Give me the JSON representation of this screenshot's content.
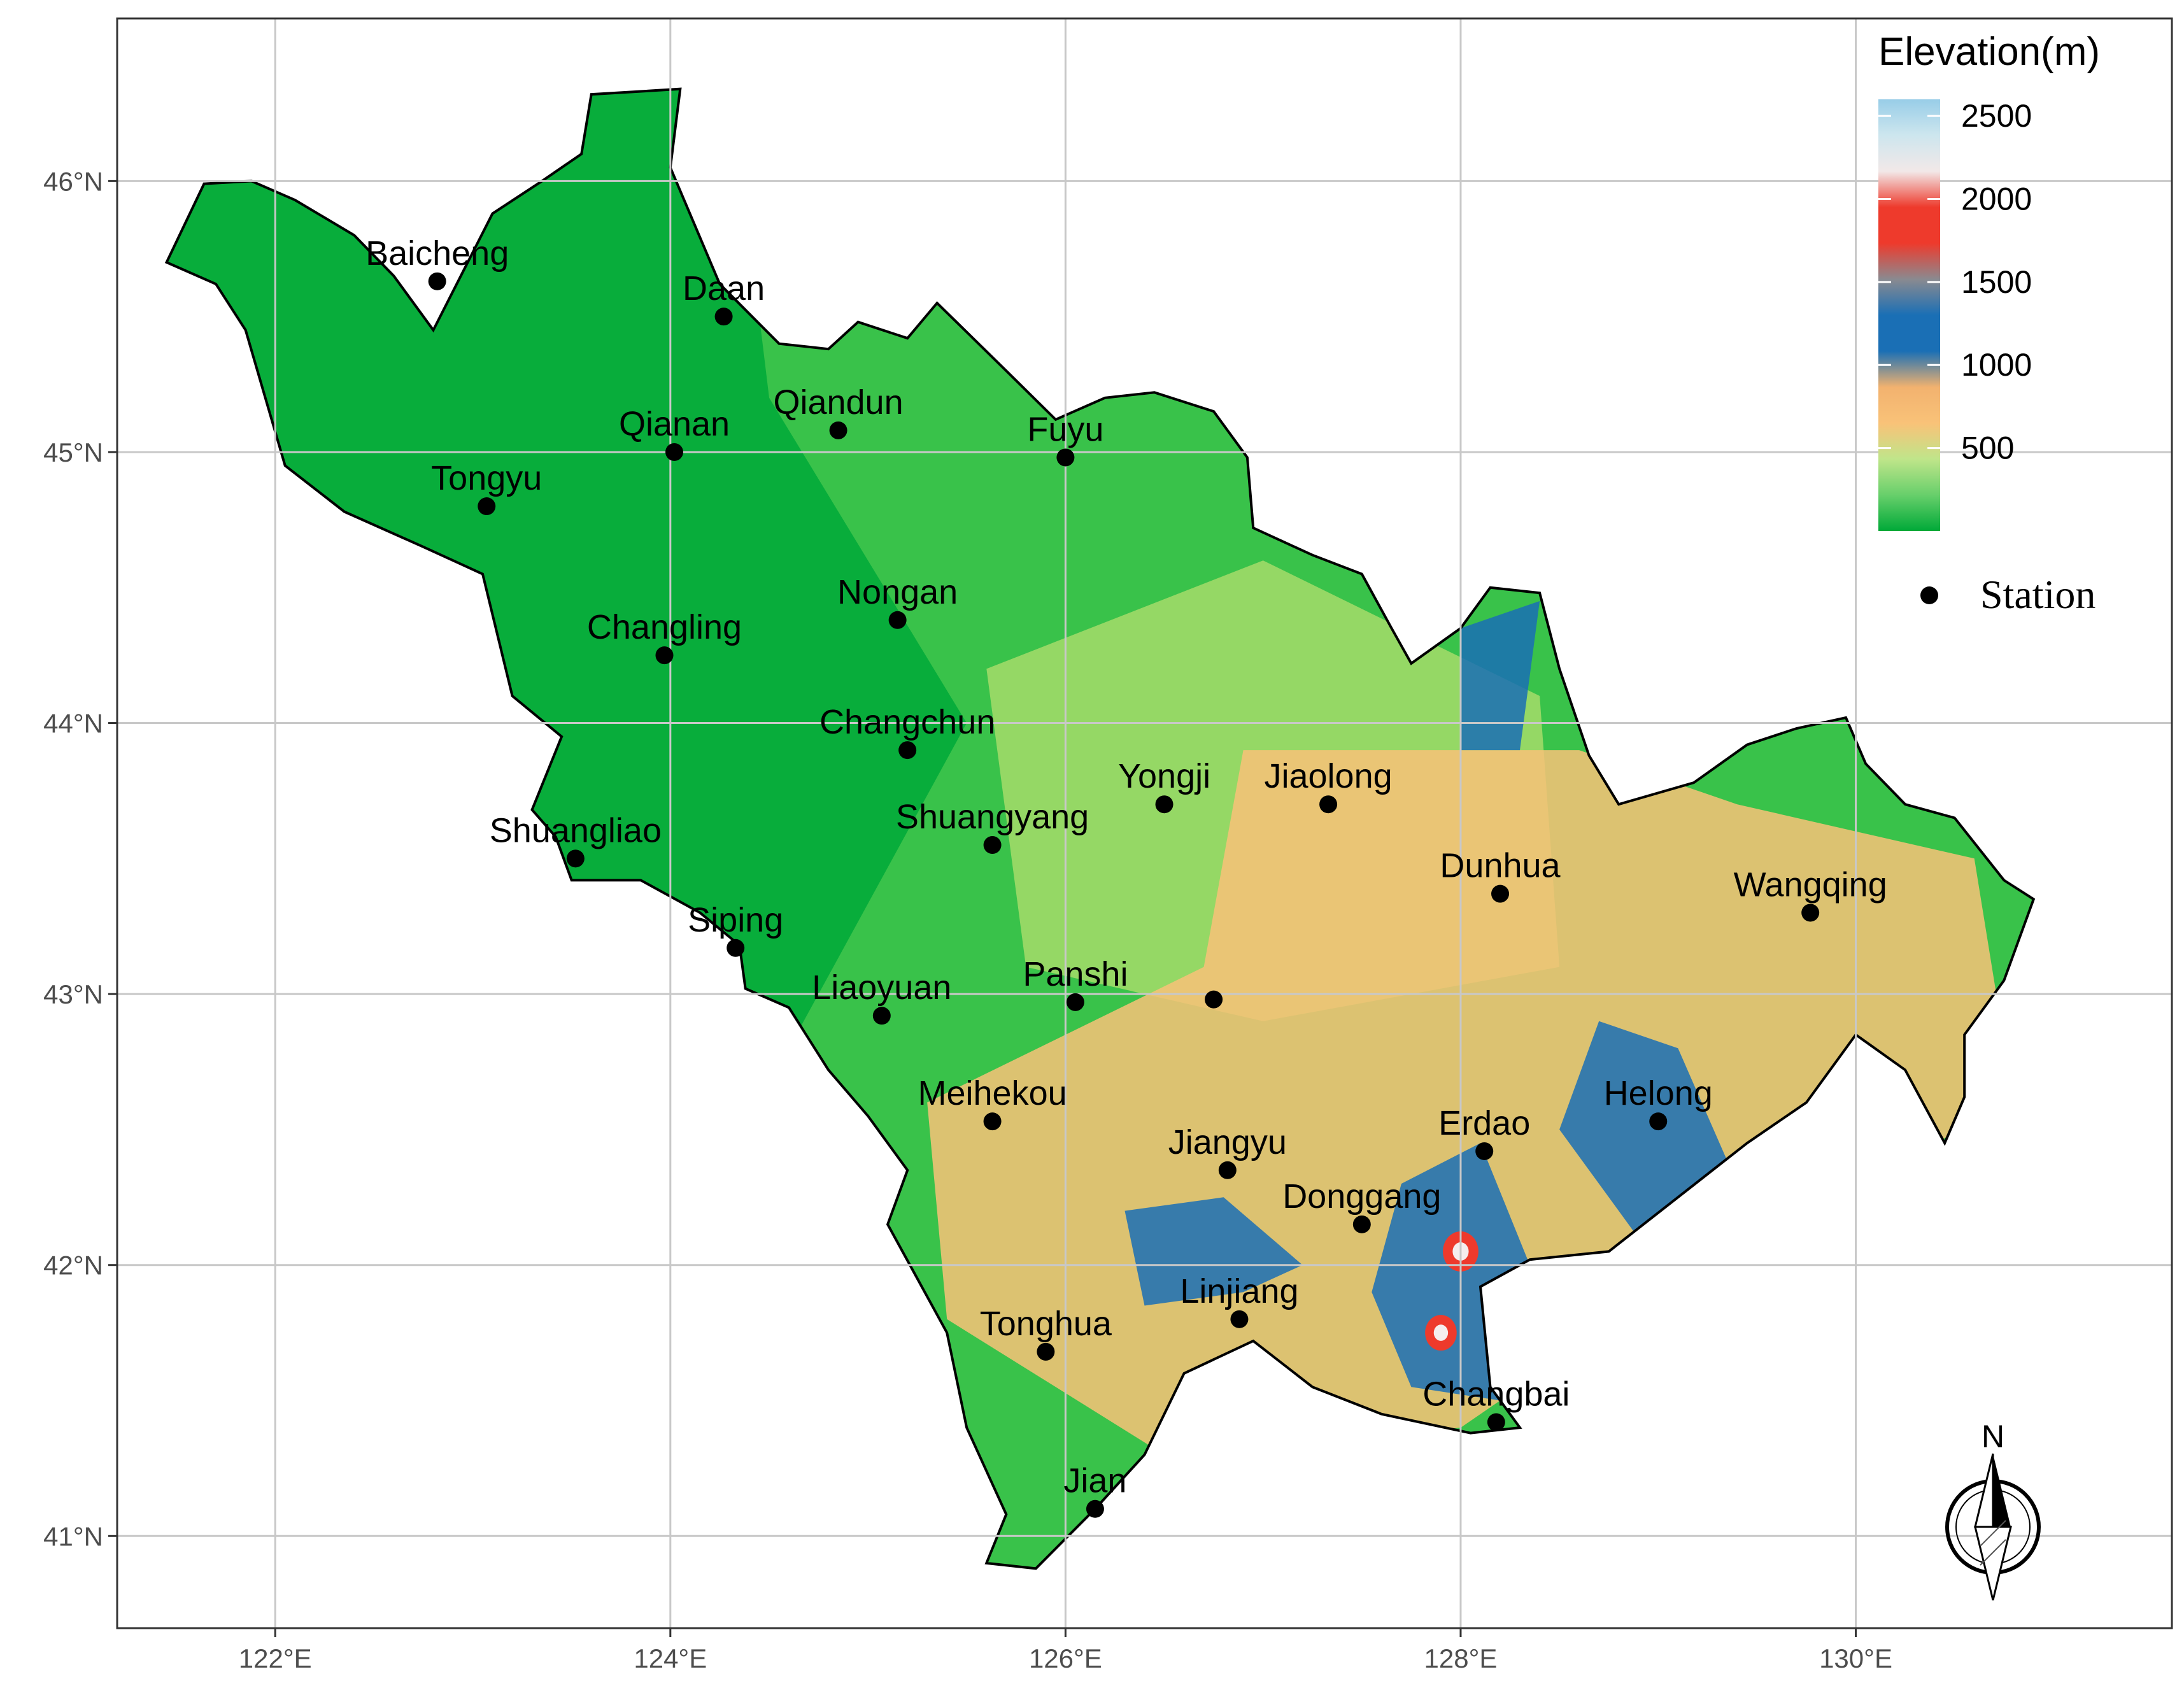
{
  "map": {
    "lon_range": [
      121.2,
      131.6
    ],
    "lat_range": [
      40.66,
      46.6
    ],
    "x_ticks": [
      {
        "value": 122,
        "label": "122°E"
      },
      {
        "value": 124,
        "label": "124°E"
      },
      {
        "value": 126,
        "label": "126°E"
      },
      {
        "value": 128,
        "label": "128°E"
      },
      {
        "value": 130,
        "label": "130°E"
      }
    ],
    "y_ticks": [
      {
        "value": 41,
        "label": "41°N"
      },
      {
        "value": 42,
        "label": "42°N"
      },
      {
        "value": 43,
        "label": "43°N"
      },
      {
        "value": 44,
        "label": "44°N"
      },
      {
        "value": 45,
        "label": "45°N"
      },
      {
        "value": 46,
        "label": "46°N"
      }
    ],
    "grid": true,
    "colors": {
      "lowland": "#00a938",
      "plain": "#39c24a",
      "hill": "#a6dc6a",
      "upland": "#f9c278",
      "mountain": "#1a6fb5",
      "high": "#ee3a2c",
      "peak": "#a7d6ec",
      "grid": "#c8c8c8",
      "panel_border": "#333333"
    }
  },
  "stations": [
    {
      "name": "Baicheng",
      "lon": 122.82,
      "lat": 45.63
    },
    {
      "name": "Daan",
      "lon": 124.27,
      "lat": 45.5
    },
    {
      "name": "Qiandun",
      "lon": 124.85,
      "lat": 45.08
    },
    {
      "name": "Qianan",
      "lon": 124.02,
      "lat": 45.0
    },
    {
      "name": "Fuyu",
      "lon": 126.0,
      "lat": 44.98
    },
    {
      "name": "Tongyu",
      "lon": 123.07,
      "lat": 44.8
    },
    {
      "name": "Nongan",
      "lon": 125.15,
      "lat": 44.38
    },
    {
      "name": "Changling",
      "lon": 123.97,
      "lat": 44.25
    },
    {
      "name": "Changchun",
      "lon": 125.2,
      "lat": 43.9
    },
    {
      "name": "Yongji",
      "lon": 126.5,
      "lat": 43.7
    },
    {
      "name": "Jiaolong",
      "lon": 127.33,
      "lat": 43.7
    },
    {
      "name": "Shuangyang",
      "lon": 125.63,
      "lat": 43.55
    },
    {
      "name": "Shuangliao",
      "lon": 123.52,
      "lat": 43.5
    },
    {
      "name": "Dunhua",
      "lon": 128.2,
      "lat": 43.37
    },
    {
      "name": "Wangqing",
      "lon": 129.77,
      "lat": 43.3
    },
    {
      "name": "Siping",
      "lon": 124.33,
      "lat": 43.17
    },
    {
      "name": "Panshi",
      "lon": 126.05,
      "lat": 42.97
    },
    {
      "name": "",
      "lon": 126.75,
      "lat": 42.98
    },
    {
      "name": "Liaoyuan",
      "lon": 125.07,
      "lat": 42.92
    },
    {
      "name": "Meihekou",
      "lon": 125.63,
      "lat": 42.53
    },
    {
      "name": "Helong",
      "lon": 129.0,
      "lat": 42.53
    },
    {
      "name": "Erdao",
      "lon": 128.12,
      "lat": 42.42
    },
    {
      "name": "Jiangyu",
      "lon": 126.82,
      "lat": 42.35
    },
    {
      "name": "Donggang",
      "lon": 127.5,
      "lat": 42.15
    },
    {
      "name": "Linjiang",
      "lon": 126.88,
      "lat": 41.8
    },
    {
      "name": "Tonghua",
      "lon": 125.9,
      "lat": 41.68
    },
    {
      "name": "Changbai",
      "lon": 128.18,
      "lat": 41.42
    },
    {
      "name": "Jian",
      "lon": 126.15,
      "lat": 41.1
    }
  ],
  "legend": {
    "title": "Elevation(m)",
    "range": [
      0,
      2600
    ],
    "ticks": [
      {
        "value": 500,
        "label": "500"
      },
      {
        "value": 1000,
        "label": "1000"
      },
      {
        "value": 1500,
        "label": "1500"
      },
      {
        "value": 2000,
        "label": "2000"
      },
      {
        "value": 2500,
        "label": "2500"
      }
    ],
    "gradient": [
      "#00a938",
      "#67cf6b",
      "#c0e58a",
      "#f9c278",
      "#f2b26f",
      "#1a6fb5",
      "#1a6fb5",
      "#8a8a90",
      "#ee3a2c",
      "#ee3a2c",
      "#f2e8e8",
      "#cde6ee",
      "#98cde8"
    ],
    "station_label": "Station"
  },
  "north_arrow": {
    "label": "N"
  }
}
